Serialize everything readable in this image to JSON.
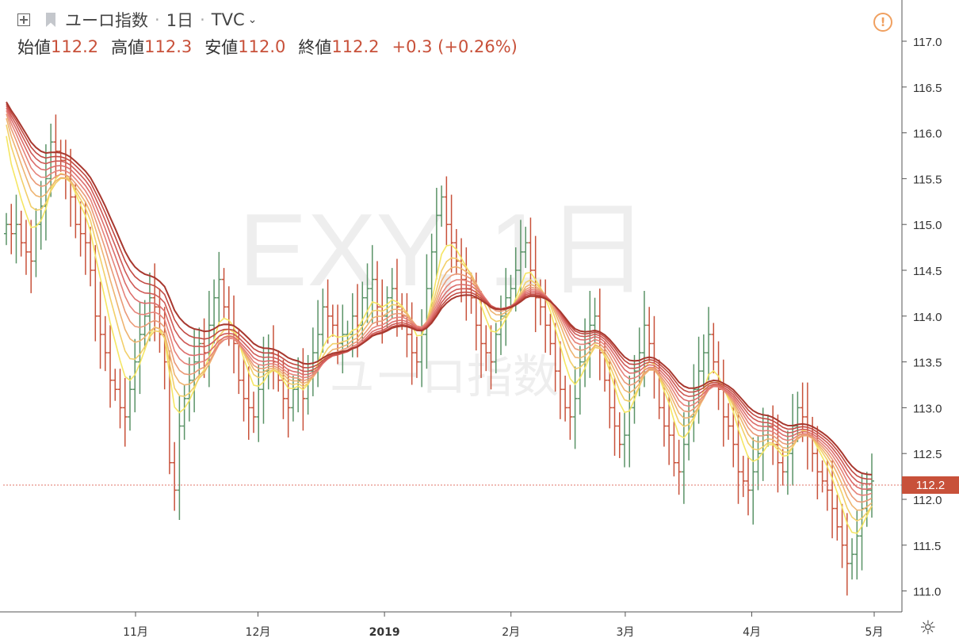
{
  "header": {
    "title": "ユーロ指数",
    "interval": "1日",
    "source": "TVC",
    "open_label": "始値",
    "open_value": "112.2",
    "high_label": "高値",
    "high_value": "112.3",
    "low_label": "安値",
    "low_value": "112.0",
    "close_label": "終値",
    "close_value": "112.2",
    "change": "+0.3 (+0.26%)"
  },
  "watermark": {
    "line1": "EXY, 1日",
    "line2": "ユーロ指数"
  },
  "price_label": "112.2",
  "colors": {
    "up": "#5a9367",
    "down": "#c8513a",
    "price_line": "#e0746a",
    "ribbon": [
      "#f5e664",
      "#f2cf6a",
      "#eeb471",
      "#ea9a77",
      "#e6837a",
      "#dc6d6b",
      "#cf5a56",
      "#c24a43",
      "#a8382f"
    ]
  },
  "chart_data": {
    "type": "line",
    "title": "",
    "xlabel": "",
    "ylabel": "",
    "ylim": [
      110.8,
      117.4
    ],
    "y_ticks": [
      "117.0",
      "116.5",
      "116.0",
      "115.5",
      "115.0",
      "114.5",
      "114.0",
      "113.5",
      "113.0",
      "112.5",
      "112.0",
      "111.5",
      "111.0"
    ],
    "x_ticks": [
      {
        "label": "11月",
        "day": 23
      },
      {
        "label": "12月",
        "day": 53
      },
      {
        "label": "2019",
        "day": 84
      },
      {
        "label": "2月",
        "day": 115
      },
      {
        "label": "3月",
        "day": 143
      },
      {
        "label": "4月",
        "day": 174
      },
      {
        "label": "5月",
        "day": 204
      }
    ],
    "x_range_days": [
      -10,
      216
    ],
    "ohlc_close_approx": [
      115.0,
      114.9,
      115.0,
      114.8,
      114.7,
      114.6,
      115.0,
      115.2,
      115.5,
      115.9,
      115.8,
      115.7,
      115.5,
      115.3,
      115.0,
      114.9,
      114.8,
      114.5,
      114.0,
      113.8,
      113.6,
      113.3,
      113.2,
      113.0,
      112.9,
      113.2,
      113.5,
      113.8,
      114.0,
      114.2,
      114.1,
      113.8,
      113.5,
      112.4,
      112.1,
      112.8,
      113.1,
      113.3,
      113.5,
      113.7,
      113.6,
      113.9,
      114.2,
      114.4,
      114.1,
      113.9,
      113.7,
      113.3,
      113.1,
      113.0,
      112.9,
      113.2,
      113.4,
      113.6,
      113.5,
      113.3,
      113.1,
      113.0,
      113.2,
      113.3,
      113.1,
      113.4,
      113.6,
      113.8,
      114.1,
      114.0,
      113.9,
      113.7,
      113.8,
      113.8,
      114.0,
      113.9,
      114.2,
      114.3,
      114.4,
      114.1,
      114.0,
      114.2,
      114.3,
      114.1,
      114.0,
      113.8,
      113.6,
      113.5,
      113.8,
      114.3,
      114.7,
      115.1,
      115.3,
      115.0,
      114.8,
      114.6,
      114.4,
      114.3,
      114.2,
      113.9,
      113.7,
      113.6,
      113.5,
      113.8,
      114.0,
      114.2,
      114.3,
      114.5,
      114.7,
      114.8,
      114.5,
      114.2,
      114.1,
      113.9,
      113.7,
      113.4,
      113.2,
      113.0,
      112.9,
      113.1,
      113.5,
      113.7,
      113.9,
      114.0,
      113.6,
      113.3,
      113.0,
      112.8,
      112.6,
      112.7,
      113.0,
      113.4,
      113.6,
      113.9,
      113.7,
      113.4,
      113.0,
      112.8,
      112.7,
      112.4,
      112.3,
      112.6,
      112.9,
      113.2,
      113.4,
      113.6,
      113.8,
      113.5,
      113.2,
      112.9,
      112.8,
      112.6,
      112.3,
      112.2,
      112.1,
      112.3,
      112.5,
      112.7,
      112.8,
      112.6,
      112.4,
      112.3,
      112.5,
      112.8,
      113.0,
      112.9,
      112.7,
      112.5,
      112.3,
      112.2,
      112.1,
      111.9,
      111.7,
      111.5,
      111.3,
      111.4,
      111.6,
      111.9,
      112.1,
      112.2
    ],
    "series": [],
    "grid": false,
    "price_line": 112.2
  }
}
